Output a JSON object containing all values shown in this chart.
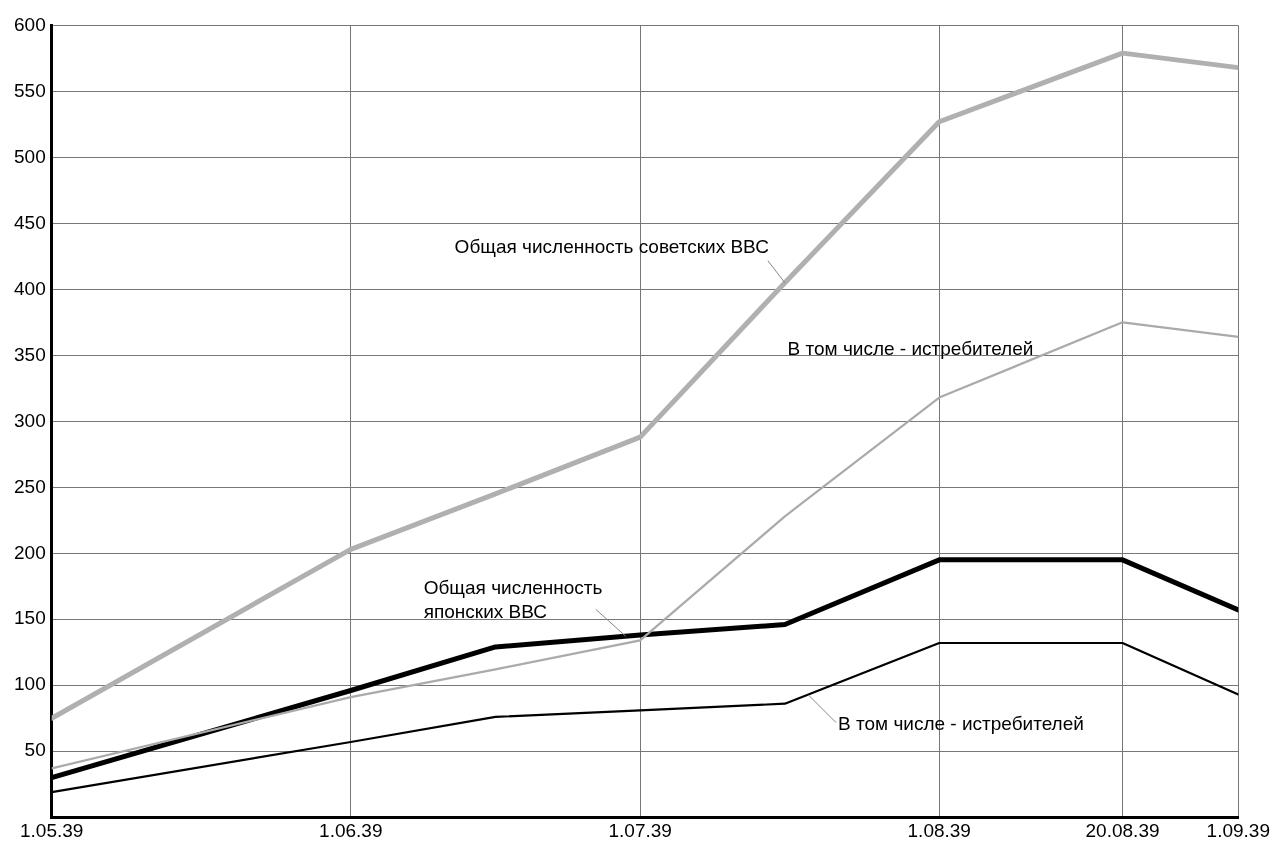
{
  "chart_data": {
    "type": "line",
    "x": [
      "1939-05-01",
      "1939-06-01",
      "1939-06-16",
      "1939-07-01",
      "1939-07-16",
      "1939-08-01",
      "1939-08-20",
      "1939-09-01"
    ],
    "series": [
      {
        "name": "Общая численность советских ВВС",
        "color": "#b0b0b0",
        "values": [
          75,
          203,
          245,
          288,
          405,
          527,
          579,
          568
        ]
      },
      {
        "name": "В том числе - истребителей",
        "color": "#aaaaaa",
        "values": [
          37,
          91,
          112,
          134,
          228,
          318,
          375,
          364
        ]
      },
      {
        "name": "Общая численность японских ВВС",
        "color": "#000000",
        "values": [
          30,
          96,
          129,
          138,
          146,
          195,
          195,
          157
        ]
      },
      {
        "name": "В том числе - истребителей",
        "color": "#000000",
        "values": [
          19,
          57,
          76,
          81,
          86,
          132,
          132,
          93
        ]
      }
    ],
    "xlim": [
      "1939-05-01",
      "1939-09-01"
    ],
    "xticks": [
      {
        "value": "1939-05-01",
        "label": "1.05.39"
      },
      {
        "value": "1939-06-01",
        "label": "1.06.39"
      },
      {
        "value": "1939-07-01",
        "label": "1.07.39"
      },
      {
        "value": "1939-08-01",
        "label": "1.08.39"
      },
      {
        "value": "1939-08-20",
        "label": "20.08.39"
      },
      {
        "value": "1939-09-01",
        "label": "1.09.39"
      }
    ],
    "ylim": [
      0,
      600
    ],
    "yticks": [
      50,
      100,
      150,
      200,
      250,
      300,
      350,
      400,
      450,
      500,
      550,
      600
    ],
    "grid": true,
    "legend": false,
    "marker": "none",
    "line_style": "solid"
  }
}
